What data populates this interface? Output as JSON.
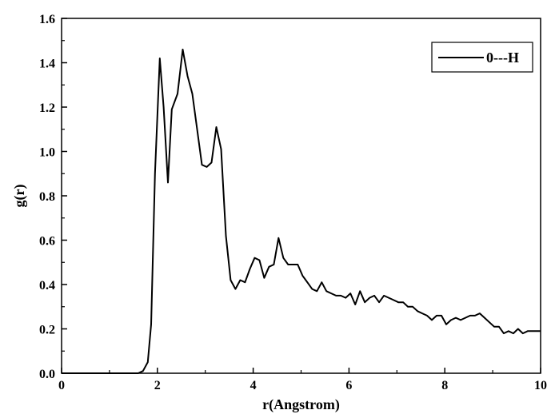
{
  "chart_data": {
    "type": "line",
    "title": "",
    "xlabel": "r(Angstrom)",
    "ylabel": "g(r)",
    "xlim": [
      0,
      10
    ],
    "ylim": [
      0,
      1.6
    ],
    "xticks": [
      "0",
      "2",
      "4",
      "6",
      "8",
      "10"
    ],
    "yticks": [
      "0.0",
      "0.2",
      "0.4",
      "0.6",
      "0.8",
      "1.0",
      "1.2",
      "1.4",
      "1.6"
    ],
    "grid": false,
    "legend_position": "top-right",
    "series": [
      {
        "name": "0---H",
        "color": "#000000",
        "x": [
          0,
          1.0,
          1.6,
          1.7,
          1.8,
          1.87,
          1.95,
          2.05,
          2.13,
          2.22,
          2.3,
          2.42,
          2.53,
          2.63,
          2.73,
          2.83,
          2.93,
          3.03,
          3.13,
          3.23,
          3.33,
          3.43,
          3.53,
          3.63,
          3.73,
          3.83,
          3.93,
          4.03,
          4.13,
          4.23,
          4.33,
          4.43,
          4.53,
          4.63,
          4.73,
          4.83,
          4.93,
          5.03,
          5.13,
          5.23,
          5.33,
          5.43,
          5.53,
          5.63,
          5.73,
          5.83,
          5.93,
          6.03,
          6.13,
          6.23,
          6.33,
          6.43,
          6.53,
          6.63,
          6.73,
          6.83,
          6.93,
          7.03,
          7.13,
          7.23,
          7.33,
          7.43,
          7.53,
          7.63,
          7.73,
          7.83,
          7.93,
          8.03,
          8.13,
          8.23,
          8.33,
          8.43,
          8.53,
          8.63,
          8.73,
          8.83,
          8.93,
          9.03,
          9.13,
          9.23,
          9.33,
          9.43,
          9.53,
          9.63,
          9.73,
          9.83,
          9.93,
          10.0
        ],
        "y": [
          0,
          0,
          0,
          0.01,
          0.05,
          0.22,
          0.9,
          1.42,
          1.2,
          0.86,
          1.19,
          1.26,
          1.46,
          1.34,
          1.26,
          1.1,
          0.94,
          0.93,
          0.95,
          1.11,
          1.01,
          0.62,
          0.42,
          0.38,
          0.42,
          0.41,
          0.47,
          0.52,
          0.51,
          0.43,
          0.48,
          0.49,
          0.61,
          0.52,
          0.49,
          0.49,
          0.49,
          0.44,
          0.41,
          0.38,
          0.37,
          0.41,
          0.37,
          0.36,
          0.35,
          0.35,
          0.34,
          0.36,
          0.31,
          0.37,
          0.32,
          0.34,
          0.35,
          0.32,
          0.35,
          0.34,
          0.33,
          0.32,
          0.32,
          0.3,
          0.3,
          0.28,
          0.27,
          0.26,
          0.24,
          0.26,
          0.26,
          0.22,
          0.24,
          0.25,
          0.24,
          0.25,
          0.26,
          0.26,
          0.27,
          0.25,
          0.23,
          0.21,
          0.21,
          0.18,
          0.19,
          0.18,
          0.2,
          0.18,
          0.19,
          0.19,
          0.19,
          0.19
        ]
      }
    ]
  }
}
